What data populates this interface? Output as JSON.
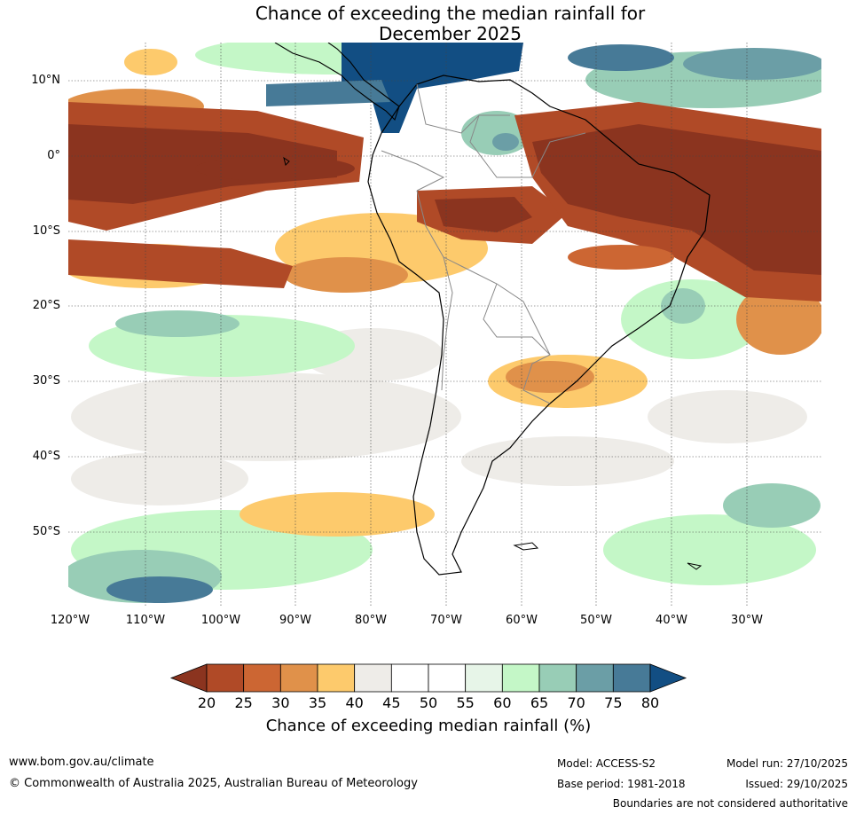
{
  "title": {
    "line1": "Chance of exceeding the median rainfall for",
    "line2": "December 2025"
  },
  "map": {
    "region": "South America",
    "lat_labels": [
      "10°N",
      "0°",
      "10°S",
      "20°S",
      "30°S",
      "40°S",
      "50°S"
    ],
    "lon_labels": [
      "120°W",
      "110°W",
      "100°W",
      "90°W",
      "80°W",
      "70°W",
      "60°W",
      "50°W",
      "40°W",
      "30°W"
    ],
    "lat_range": [
      -60,
      15
    ],
    "lon_range": [
      -120,
      -20
    ]
  },
  "colorbar": {
    "title": "Chance of exceeding median rainfall (%)",
    "ticks": [
      "20",
      "25",
      "30",
      "35",
      "40",
      "45",
      "50",
      "55",
      "60",
      "65",
      "70",
      "75",
      "80"
    ],
    "colors": [
      "#8b341f",
      "#b04a27",
      "#cc6633",
      "#e0914a",
      "#fdca6c",
      "#eeece8",
      "#ffffff",
      "#ffffff",
      "#e7f5e8",
      "#c4f7c7",
      "#98cdb6",
      "#6b9ea6",
      "#477a97",
      "#124e83"
    ],
    "colors_note": "first and last are extension arrows"
  },
  "footer": {
    "website": "www.bom.gov.au/climate",
    "copyright": "© Commonwealth of Australia 2025, Australian Bureau of Meteorology",
    "model": "Model: ACCESS-S2",
    "base_period": "Base period: 1981-2018",
    "model_run": "Model run: 27/10/2025",
    "issued": "Issued: 29/10/2025",
    "disclaimer": "Boundaries are not considered authoritative"
  }
}
